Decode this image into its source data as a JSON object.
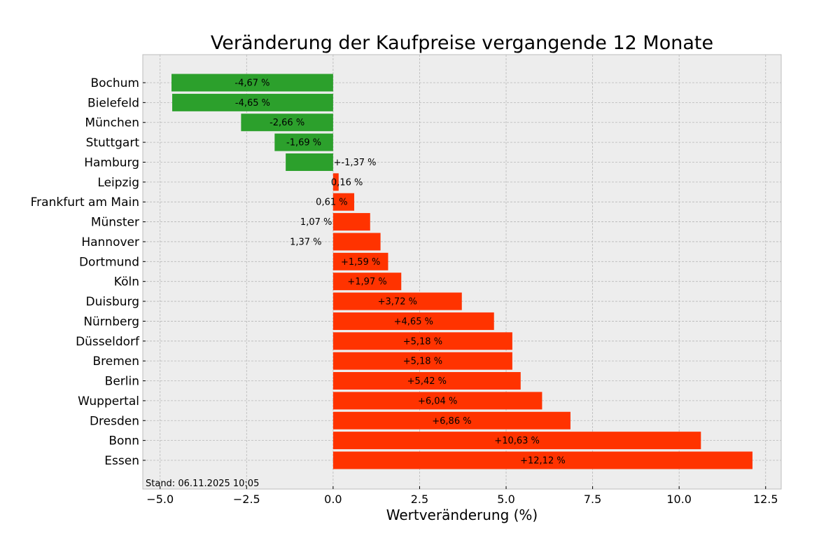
{
  "chart_data": {
    "type": "bar",
    "orientation": "horizontal",
    "title": "Veränderung der Kaufpreise vergangende 12 Monate",
    "xlabel": "Wertveränderung (%)",
    "ylabel": "",
    "xlim": [
      -5.5,
      12.95
    ],
    "xticks": [
      -5.0,
      -2.5,
      0.0,
      2.5,
      5.0,
      7.5,
      10.0,
      12.5
    ],
    "xtick_labels": [
      "−5.0",
      "−2.5",
      "0.0",
      "2.5",
      "5.0",
      "7.5",
      "10.0",
      "12.5"
    ],
    "grid": true,
    "colors": {
      "negative": "#2ca02c",
      "positive": "#ff3300",
      "background": "#ededed"
    },
    "annotation": "Stand: 06.11.2025 10:05",
    "categories": [
      "Bochum",
      "Bielefeld",
      "München",
      "Stuttgart",
      "Hamburg",
      "Leipzig",
      "Frankfurt am Main",
      "Münster",
      "Hannover",
      "Dortmund",
      "Köln",
      "Duisburg",
      "Nürnberg",
      "Düsseldorf",
      "Bremen",
      "Berlin",
      "Wuppertal",
      "Dresden",
      "Bonn",
      "Essen"
    ],
    "values": [
      -4.67,
      -4.65,
      -2.66,
      -1.69,
      -1.37,
      0.16,
      0.61,
      1.07,
      1.37,
      1.59,
      1.97,
      3.72,
      4.65,
      5.18,
      5.18,
      5.42,
      6.04,
      6.86,
      10.63,
      12.12
    ],
    "data_labels": [
      "-4,67 %",
      "-4,65 %",
      "-2,66 %",
      "-1,69 %",
      "+-1,37 %",
      "0,16 %",
      "0,61 %",
      "1,07 %",
      "1,37 %",
      "+1,59 %",
      "+1,97 %",
      "+3,72 %",
      "+4,65 %",
      "+5,18 %",
      "+5,18 %",
      "+5,42 %",
      "+6,04 %",
      "+6,86 %",
      "+10,63 %",
      "+12,12 %"
    ]
  }
}
